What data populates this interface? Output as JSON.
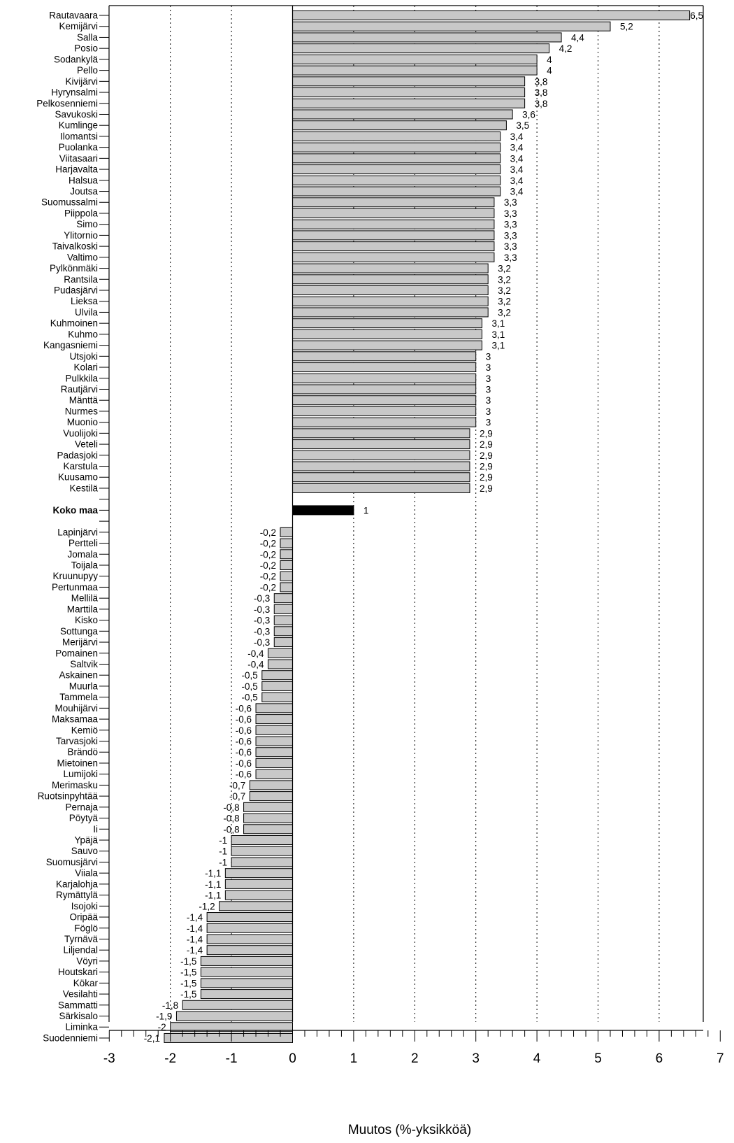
{
  "chart_data": {
    "type": "bar",
    "orientation": "horizontal",
    "title": "",
    "xlabel": "Muutos (%-yksikköä)",
    "ylabel": "",
    "xlim": [
      -3,
      7
    ],
    "x_ticks": [
      "-3",
      "-2",
      "-1",
      "0",
      "1",
      "2",
      "3",
      "4",
      "5",
      "6",
      "7"
    ],
    "grid": "vertical dashed lines at -2, -1, 1, 2, 3, 4, 5, 6",
    "legend": "none",
    "colors": {
      "bar": "#c8c8c8",
      "highlight": "#000000",
      "border": "#000000"
    },
    "categories": [
      "Rautavaara",
      "Kemijärvi",
      "Salla",
      "Posio",
      "Sodankylä",
      "Pello",
      "Kivijärvi",
      "Hyrynsalmi",
      "Pelkosenniemi",
      "Savukoski",
      "Kumlinge",
      "Ilomantsi",
      "Puolanka",
      "Viitasaari",
      "Harjavalta",
      "Halsua",
      "Joutsa",
      "Suomussalmi",
      "Piippola",
      "Simo",
      "Ylitornio",
      "Taivalkoski",
      "Valtimo",
      "Pylkönmäki",
      "Rantsila",
      "Pudasjärvi",
      "Lieksa",
      "Ulvila",
      "Kuhmoinen",
      "Kuhmo",
      "Kangasniemi",
      "Utsjoki",
      "Kolari",
      "Pulkkila",
      "Rautjärvi",
      "Mänttä",
      "Nurmes",
      "Muonio",
      "Vuolijoki",
      "Veteli",
      "Padasjoki",
      "Karstula",
      "Kuusamo",
      "Kestilä",
      "",
      "Koko maa",
      "",
      "Lapinjärvi",
      "Pertteli",
      "Jomala",
      "Toijala",
      "Kruunupyy",
      "Pertunmaa",
      "Mellilä",
      "Marttila",
      "Kisko",
      "Sottunga",
      "Merijärvi",
      "Pomainen",
      "Saltvik",
      "Askainen",
      "Muurla",
      "Tammela",
      "Mouhijärvi",
      "Maksamaa",
      "Kemiö",
      "Tarvasjoki",
      "Brändö",
      "Mietoinen",
      "Lumijoki",
      "Merimasku",
      "Ruotsinpyhtää",
      "Pernaja",
      "Pöytyä",
      "Ii",
      "Ypäjä",
      "Sauvo",
      "Suomusjärvi",
      "Viiala",
      "Karjalohja",
      "Rymättylä",
      "Isojoki",
      "Oripää",
      "Föglö",
      "Tyrnävä",
      "Liljendal",
      "Vöyri",
      "Houtskari",
      "Kökar",
      "Vesilahti",
      "Sammatti",
      "Särkisalo",
      "Liminka",
      "Suodenniemi"
    ],
    "values": [
      6.5,
      5.2,
      4.4,
      4.2,
      4,
      4,
      3.8,
      3.8,
      3.8,
      3.6,
      3.5,
      3.4,
      3.4,
      3.4,
      3.4,
      3.4,
      3.4,
      3.3,
      3.3,
      3.3,
      3.3,
      3.3,
      3.3,
      3.2,
      3.2,
      3.2,
      3.2,
      3.2,
      3.1,
      3.1,
      3.1,
      3,
      3,
      3,
      3,
      3,
      3,
      3,
      2.9,
      2.9,
      2.9,
      2.9,
      2.9,
      2.9,
      null,
      1,
      null,
      -0.2,
      -0.2,
      -0.2,
      -0.2,
      -0.2,
      -0.2,
      -0.3,
      -0.3,
      -0.3,
      -0.3,
      -0.3,
      -0.4,
      -0.4,
      -0.5,
      -0.5,
      -0.5,
      -0.6,
      -0.6,
      -0.6,
      -0.6,
      -0.6,
      -0.6,
      -0.6,
      -0.7,
      -0.7,
      -0.8,
      -0.8,
      -0.8,
      -1,
      -1,
      -1,
      -1.1,
      -1.1,
      -1.1,
      -1.2,
      -1.4,
      -1.4,
      -1.4,
      -1.4,
      -1.5,
      -1.5,
      -1.5,
      -1.5,
      -1.8,
      -1.9,
      -2,
      -2.1
    ],
    "value_labels": [
      "6,5",
      "5,2",
      "4,4",
      "4,2",
      "4",
      "4",
      "3,8",
      "3,8",
      "3,8",
      "3,6",
      "3,5",
      "3,4",
      "3,4",
      "3,4",
      "3,4",
      "3,4",
      "3,4",
      "3,3",
      "3,3",
      "3,3",
      "3,3",
      "3,3",
      "3,3",
      "3,2",
      "3,2",
      "3,2",
      "3,2",
      "3,2",
      "3,1",
      "3,1",
      "3,1",
      "3",
      "3",
      "3",
      "3",
      "3",
      "3",
      "3",
      "2,9",
      "2,9",
      "2,9",
      "2,9",
      "2,9",
      "2,9",
      "",
      "1",
      "",
      "-0,2",
      "-0,2",
      "-0,2",
      "-0,2",
      "-0,2",
      "-0,2",
      "-0,3",
      "-0,3",
      "-0,3",
      "-0,3",
      "-0,3",
      "-0,4",
      "-0,4",
      "-0,5",
      "-0,5",
      "-0,5",
      "-0,6",
      "-0,6",
      "-0,6",
      "-0,6",
      "-0,6",
      "-0,6",
      "-0,6",
      "-0,7",
      "-0,7",
      "-0,8",
      "-0,8",
      "-0,8",
      "-1",
      "-1",
      "-1",
      "-1,1",
      "-1,1",
      "-1,1",
      "-1,2",
      "-1,4",
      "-1,4",
      "-1,4",
      "-1,4",
      "-1,5",
      "-1,5",
      "-1,5",
      "-1,5",
      "-1,8",
      "-1,9",
      "-2",
      "-2,1"
    ],
    "highlight_category": "Koko maa"
  }
}
